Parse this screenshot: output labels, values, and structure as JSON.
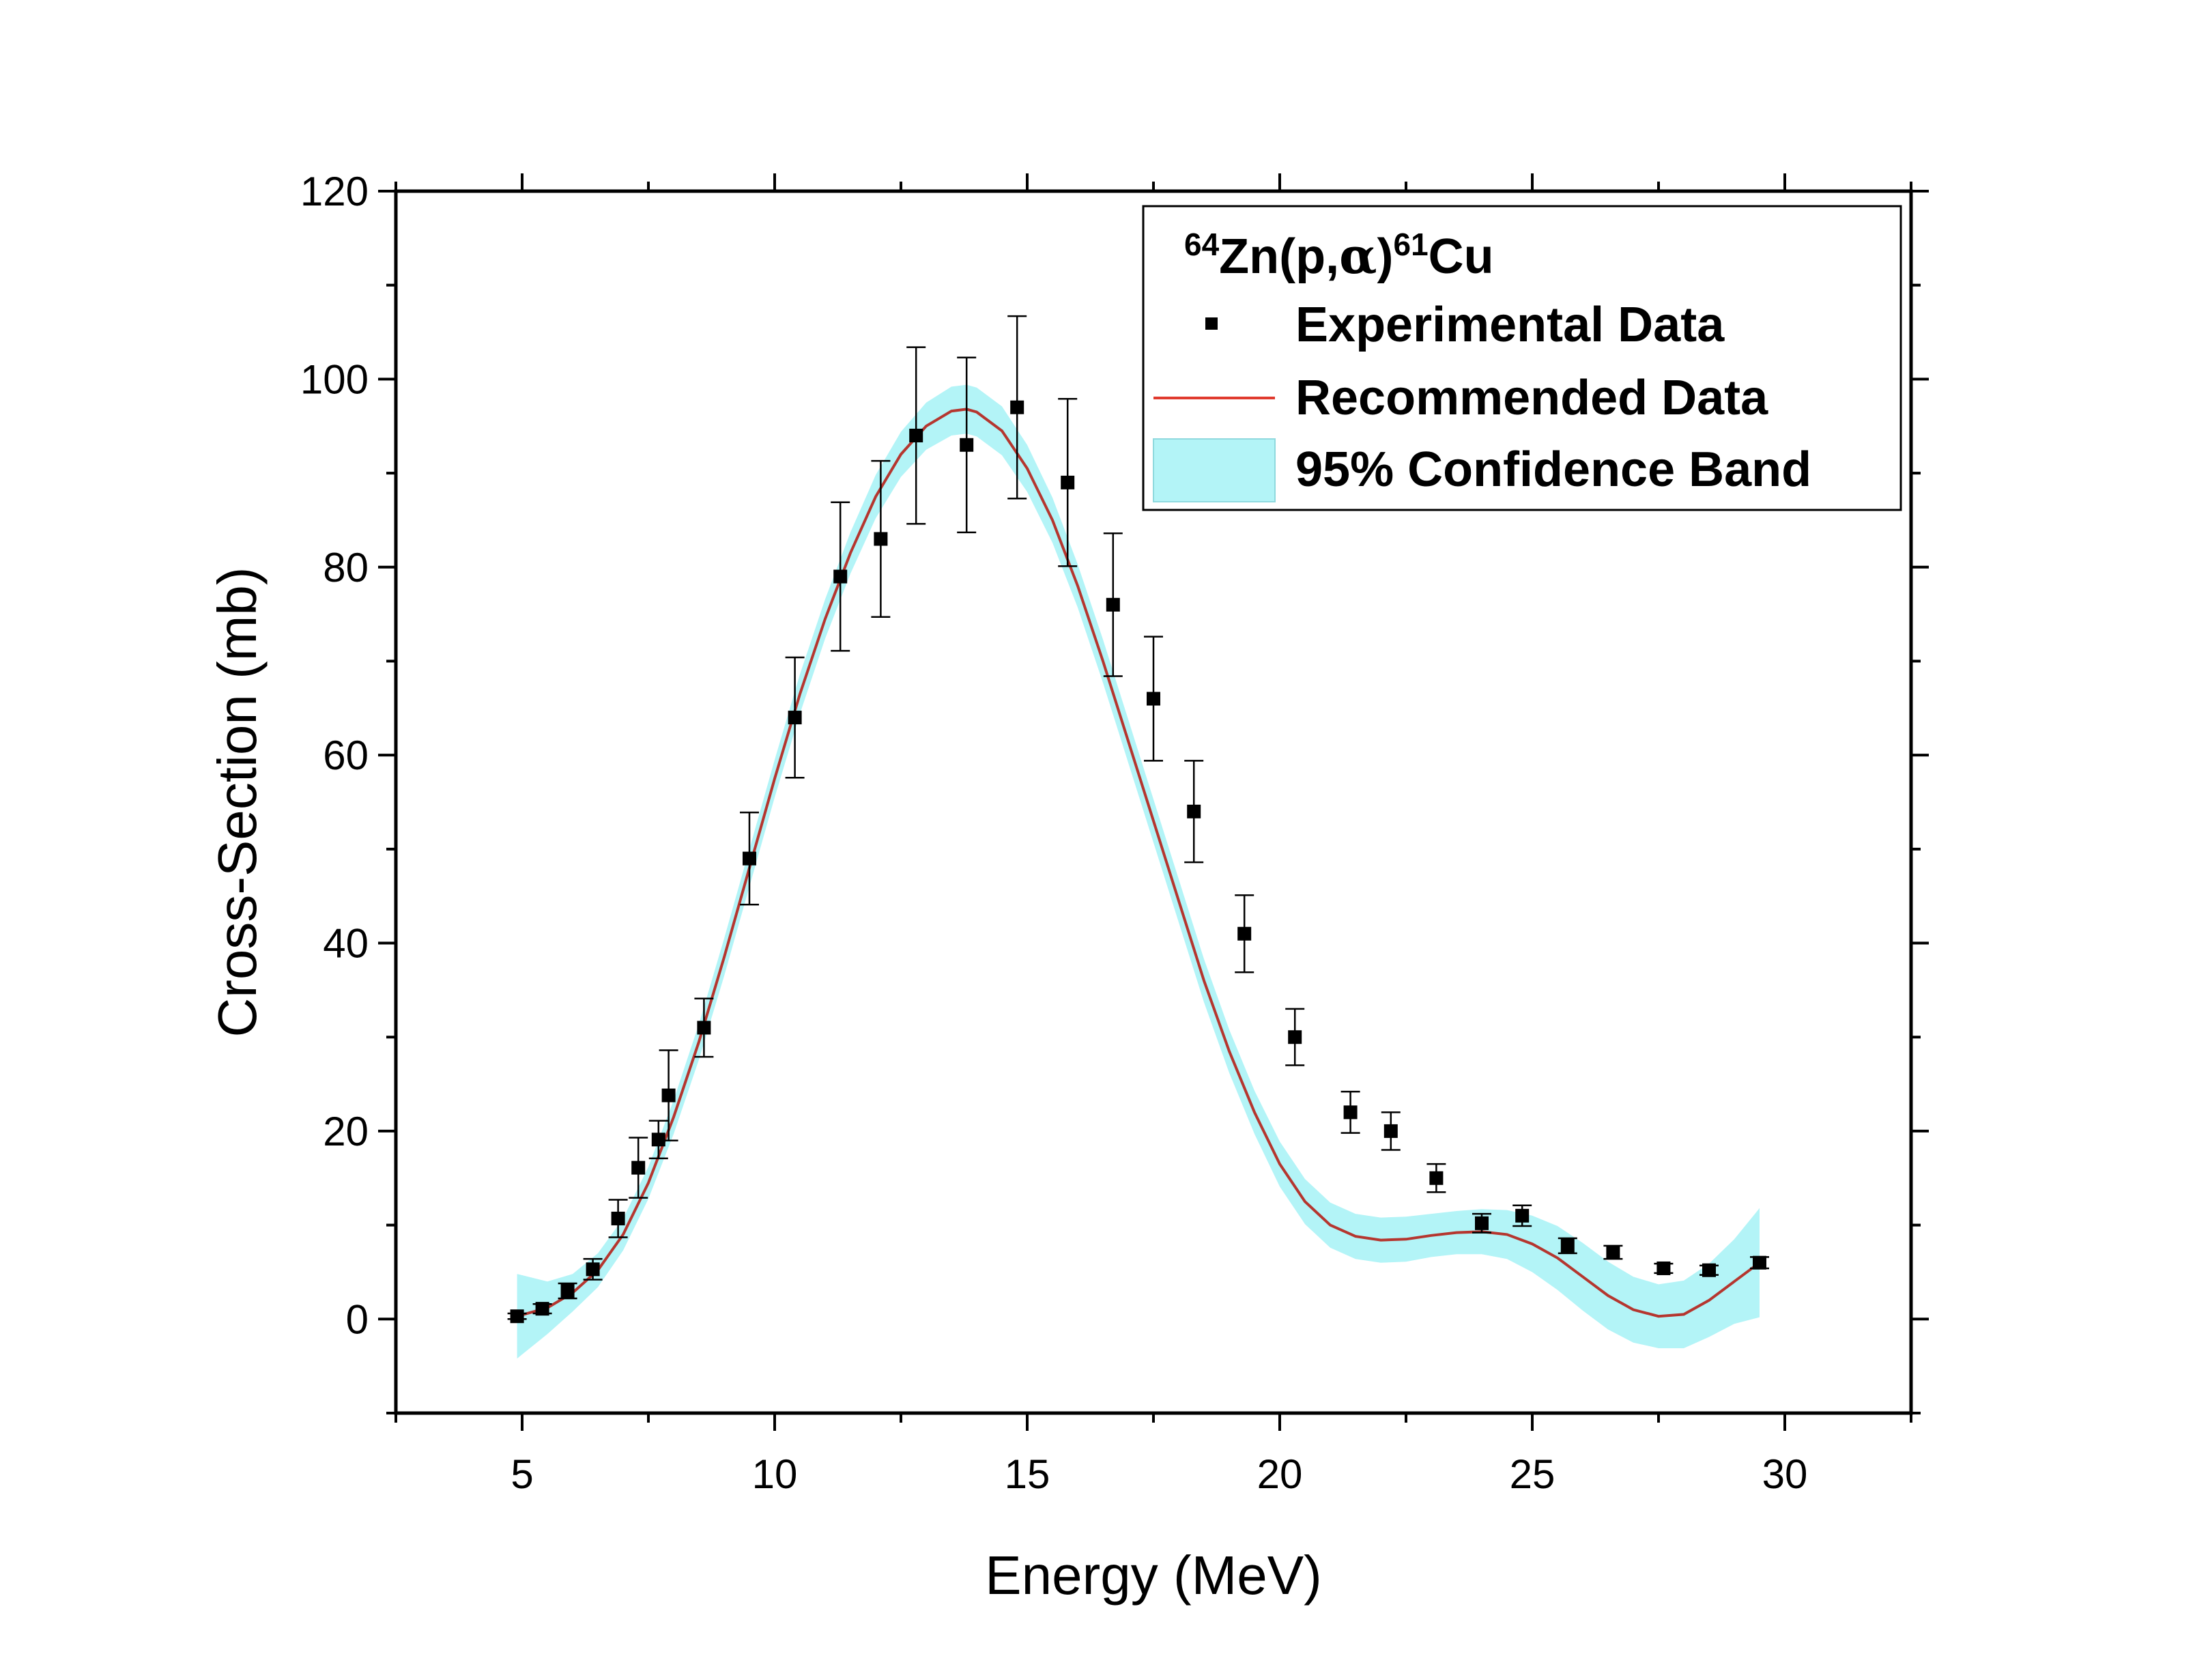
{
  "chart_data": {
    "type": "scatter",
    "title": "64Zn(p,α)61Cu",
    "title_parts": {
      "mass_a": "64",
      "target": "Zn(p,",
      "alpha": "α",
      "close": ")",
      "mass_b": "61",
      "product": "Cu"
    },
    "xlabel": "Energy (MeV)",
    "ylabel": "Cross-Section (mb)",
    "xlim": [
      2.5,
      32.5
    ],
    "ylim": [
      -10,
      120
    ],
    "x_major_ticks": [
      5,
      10,
      15,
      20,
      25,
      30
    ],
    "x_minor_ticks": [
      2.5,
      7.5,
      12.5,
      17.5,
      22.5,
      27.5,
      32.5
    ],
    "y_major_ticks": [
      0,
      20,
      40,
      60,
      80,
      100,
      120
    ],
    "y_minor_ticks": [
      -10,
      10,
      30,
      50,
      70,
      90,
      110
    ],
    "x_tick_labels": [
      "5",
      "10",
      "15",
      "20",
      "25",
      "30"
    ],
    "y_tick_labels": [
      "0",
      "20",
      "40",
      "60",
      "80",
      "100",
      "120"
    ],
    "legend": {
      "position": "top-right",
      "entries": [
        "Experimental Data",
        "Recommended Data",
        "95% Confidence Band"
      ]
    },
    "series": [
      {
        "name": "Experimental Data",
        "kind": "scatter_errorbars",
        "x": [
          4.9,
          5.4,
          5.9,
          6.4,
          6.9,
          7.3,
          7.7,
          7.9,
          8.6,
          9.5,
          10.4,
          11.3,
          12.1,
          12.8,
          13.8,
          14.8,
          15.8,
          16.7,
          17.5,
          18.3,
          19.3,
          20.3,
          21.4,
          22.2,
          23.1,
          24.0,
          24.8,
          25.7,
          26.6,
          27.6,
          28.5,
          29.5
        ],
        "y": [
          0.3,
          1.1,
          3.0,
          5.3,
          10.7,
          16.1,
          19.1,
          23.8,
          31.0,
          49.0,
          64.0,
          79.0,
          83.0,
          94.0,
          93.0,
          97.0,
          89.0,
          76.0,
          66.0,
          54.0,
          41.0,
          30.0,
          22.0,
          20.0,
          15.0,
          10.2,
          11.0,
          7.8,
          7.1,
          5.4,
          5.2,
          6.0
        ],
        "error": [
          0.3,
          0.5,
          0.8,
          1.1,
          2.0,
          3.2,
          2.0,
          4.8,
          3.1,
          4.9,
          6.4,
          7.9,
          8.3,
          9.4,
          9.3,
          9.7,
          8.9,
          7.6,
          6.6,
          5.4,
          4.1,
          3.0,
          2.2,
          2.0,
          1.5,
          1.0,
          1.1,
          0.8,
          0.7,
          0.5,
          0.5,
          0.6
        ]
      },
      {
        "name": "Recommended Data",
        "kind": "line",
        "color": "#b5362f",
        "x": [
          4.9,
          5.5,
          6.0,
          6.5,
          7.0,
          7.5,
          8.0,
          8.5,
          9.0,
          9.5,
          10.0,
          10.5,
          11.0,
          11.5,
          12.0,
          12.5,
          13.0,
          13.5,
          13.8,
          14.0,
          14.5,
          15.0,
          15.5,
          16.0,
          16.5,
          17.0,
          17.5,
          18.0,
          18.5,
          19.0,
          19.5,
          20.0,
          20.5,
          21.0,
          21.5,
          22.0,
          22.5,
          23.0,
          23.5,
          24.0,
          24.5,
          25.0,
          25.5,
          26.0,
          26.5,
          27.0,
          27.5,
          28.0,
          28.5,
          29.0,
          29.5
        ],
        "y": [
          0.3,
          1.2,
          2.8,
          5.2,
          9.0,
          14.5,
          21.5,
          29.5,
          38.5,
          48.0,
          57.5,
          66.5,
          74.5,
          81.5,
          87.5,
          92.0,
          95.0,
          96.6,
          96.8,
          96.5,
          94.5,
          90.5,
          85.0,
          78.0,
          70.0,
          61.5,
          53.0,
          44.5,
          36.0,
          28.5,
          22.0,
          16.5,
          12.5,
          10.0,
          8.8,
          8.4,
          8.5,
          8.9,
          9.2,
          9.3,
          9.0,
          8.0,
          6.5,
          4.5,
          2.5,
          1.0,
          0.3,
          0.5,
          2.0,
          4.0,
          6.0
        ]
      },
      {
        "name": "95% Confidence Band",
        "kind": "band",
        "color": "#b3f4f7",
        "x": [
          4.9,
          5.5,
          6.0,
          6.5,
          7.0,
          7.5,
          8.0,
          8.5,
          9.0,
          9.5,
          10.0,
          10.5,
          11.0,
          11.5,
          12.0,
          12.5,
          13.0,
          13.5,
          13.8,
          14.0,
          14.5,
          15.0,
          15.5,
          16.0,
          16.5,
          17.0,
          17.5,
          18.0,
          18.5,
          19.0,
          19.5,
          20.0,
          20.5,
          21.0,
          21.5,
          22.0,
          22.5,
          23.0,
          23.5,
          24.0,
          24.5,
          25.0,
          25.5,
          26.0,
          26.5,
          27.0,
          27.5,
          28.0,
          28.5,
          29.0,
          29.5
        ],
        "half_width": [
          4.5,
          2.8,
          2.0,
          1.8,
          1.7,
          1.7,
          1.8,
          1.9,
          2.0,
          2.0,
          2.0,
          2.1,
          2.1,
          2.2,
          2.3,
          2.4,
          2.5,
          2.6,
          2.6,
          2.6,
          2.6,
          2.5,
          2.4,
          2.3,
          2.3,
          2.3,
          2.3,
          2.3,
          2.3,
          2.3,
          2.3,
          2.4,
          2.4,
          2.4,
          2.4,
          2.4,
          2.4,
          2.3,
          2.3,
          2.4,
          2.6,
          3.0,
          3.4,
          3.6,
          3.6,
          3.5,
          3.4,
          3.6,
          3.9,
          4.5,
          5.8
        ]
      }
    ]
  }
}
